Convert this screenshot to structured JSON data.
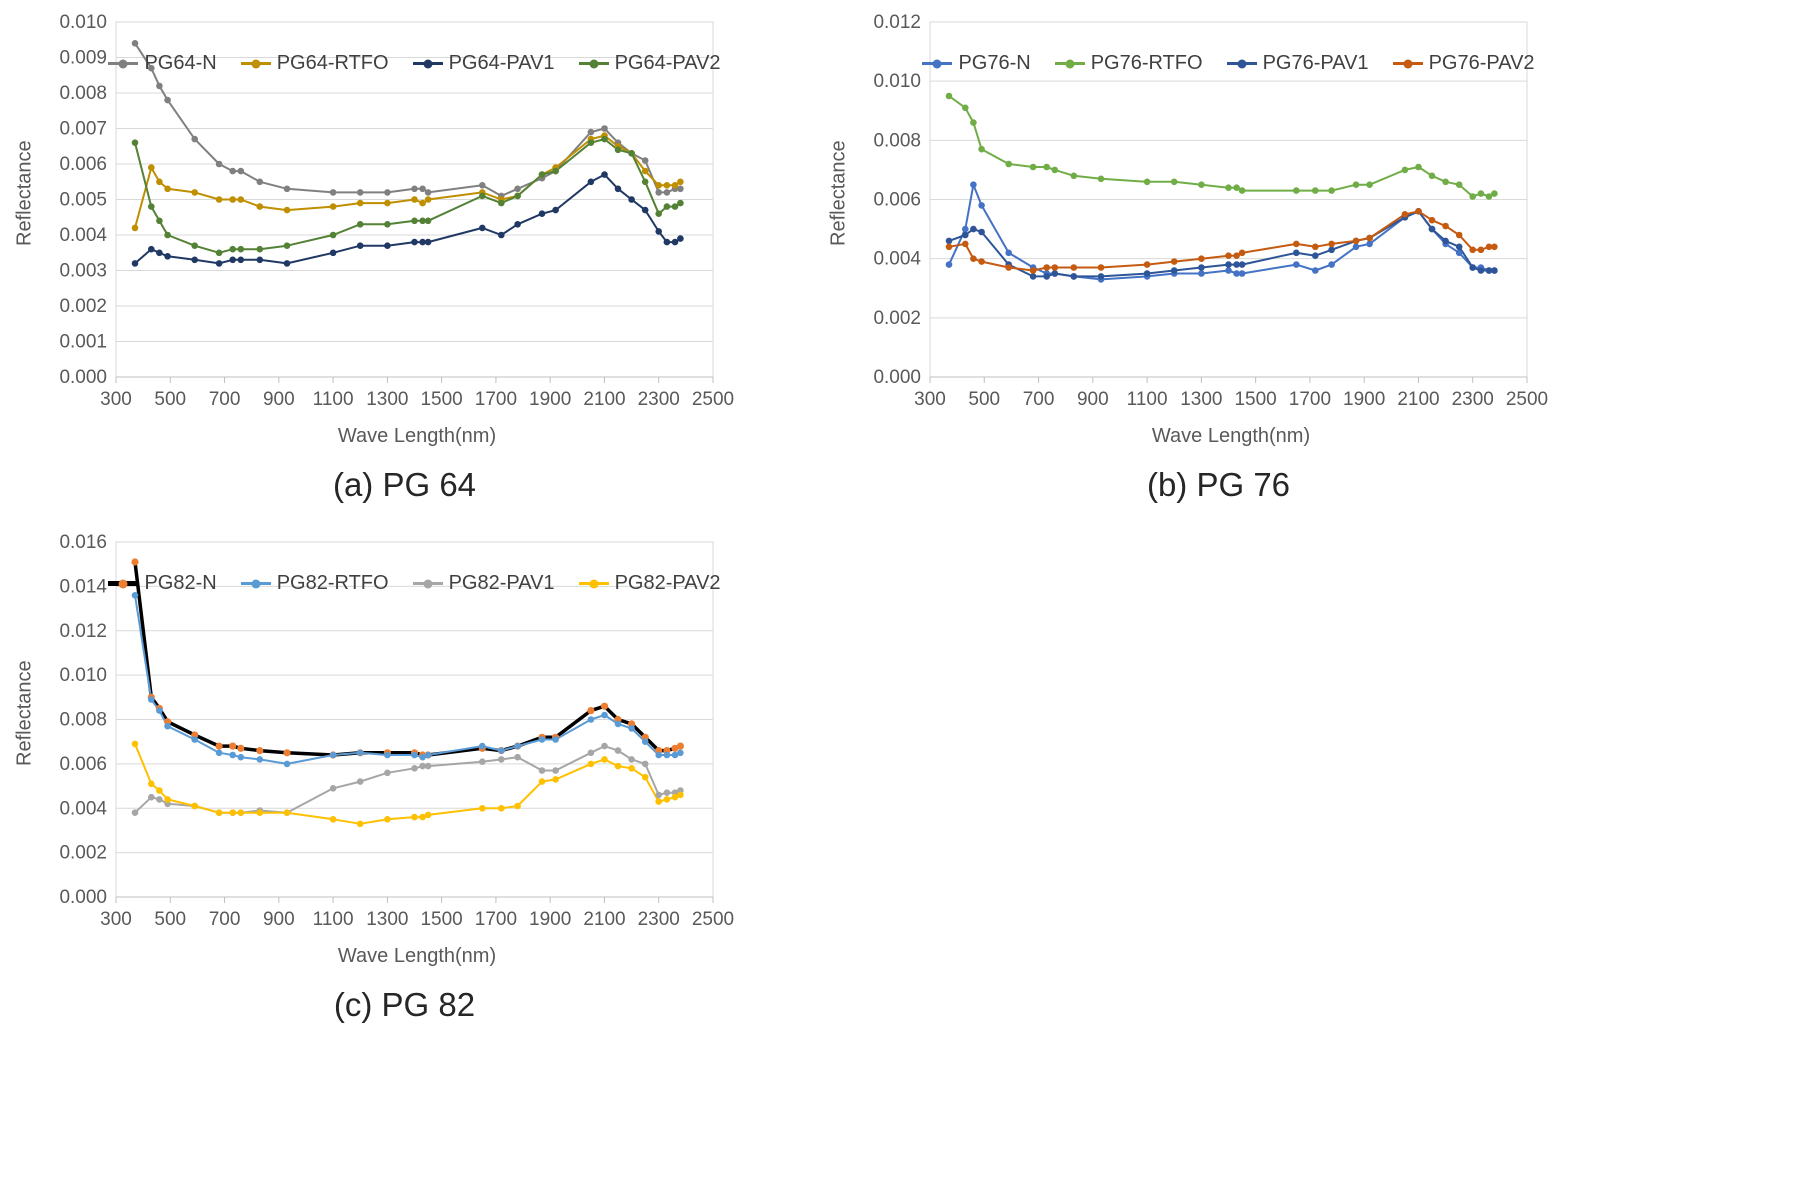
{
  "figure": {
    "background": "#FFFFFF",
    "grid_color": "#D9D9D9",
    "axis_color": "#BFBFBF",
    "tick_text_color": "#595959"
  },
  "chart_data": [
    {
      "id": "pg64",
      "type": "line",
      "caption": "(a) PG 64",
      "xlabel": "Wave Length(nm)",
      "ylabel": "Reflectance",
      "xlim": [
        300,
        2500
      ],
      "xticks": [
        300,
        500,
        700,
        900,
        1100,
        1300,
        1500,
        1700,
        1900,
        2100,
        2300,
        2500
      ],
      "ylim": [
        0,
        0.01
      ],
      "ytick_step": 0.001,
      "ytick_decimals": 3,
      "grid": true,
      "legend_position": "top-center-inside",
      "x": [
        370,
        430,
        460,
        490,
        590,
        680,
        730,
        760,
        830,
        930,
        1100,
        1200,
        1300,
        1400,
        1430,
        1450,
        1650,
        1720,
        1780,
        1870,
        1920,
        2050,
        2100,
        2150,
        2200,
        2250,
        2300,
        2330,
        2360,
        2380
      ],
      "series": [
        {
          "name": "PG64-N",
          "color": "#808080",
          "values": [
            0.0094,
            0.0087,
            0.0082,
            0.0078,
            0.0067,
            0.006,
            0.0058,
            0.0058,
            0.0055,
            0.0053,
            0.0052,
            0.0052,
            0.0052,
            0.0053,
            0.0053,
            0.0052,
            0.0054,
            0.0051,
            0.0053,
            0.0056,
            0.0058,
            0.0069,
            0.007,
            0.0066,
            0.0063,
            0.0061,
            0.0052,
            0.0052,
            0.0053,
            0.0053
          ]
        },
        {
          "name": "PG64-RTFO",
          "color": "#BF8F00",
          "values": [
            0.0042,
            0.0059,
            0.0055,
            0.0053,
            0.0052,
            0.005,
            0.005,
            0.005,
            0.0048,
            0.0047,
            0.0048,
            0.0049,
            0.0049,
            0.005,
            0.0049,
            0.005,
            0.0052,
            0.005,
            0.0051,
            0.0057,
            0.0059,
            0.0067,
            0.0068,
            0.0065,
            0.0063,
            0.0058,
            0.0054,
            0.0054,
            0.0054,
            0.0055
          ]
        },
        {
          "name": "PG64-PAV1",
          "color": "#203864",
          "values": [
            0.0032,
            0.0036,
            0.0035,
            0.0034,
            0.0033,
            0.0032,
            0.0033,
            0.0033,
            0.0033,
            0.0032,
            0.0035,
            0.0037,
            0.0037,
            0.0038,
            0.0038,
            0.0038,
            0.0042,
            0.004,
            0.0043,
            0.0046,
            0.0047,
            0.0055,
            0.0057,
            0.0053,
            0.005,
            0.0047,
            0.0041,
            0.0038,
            0.0038,
            0.0039
          ]
        },
        {
          "name": "PG64-PAV2",
          "color": "#538135",
          "values": [
            0.0066,
            0.0048,
            0.0044,
            0.004,
            0.0037,
            0.0035,
            0.0036,
            0.0036,
            0.0036,
            0.0037,
            0.004,
            0.0043,
            0.0043,
            0.0044,
            0.0044,
            0.0044,
            0.0051,
            0.0049,
            0.0051,
            0.0057,
            0.0058,
            0.0066,
            0.0067,
            0.0064,
            0.0063,
            0.0055,
            0.0046,
            0.0048,
            0.0048,
            0.0049
          ]
        }
      ]
    },
    {
      "id": "pg76",
      "type": "line",
      "caption": "(b) PG 76",
      "xlabel": "Wave Length(nm)",
      "ylabel": "Reflectance",
      "xlim": [
        300,
        2500
      ],
      "xticks": [
        300,
        500,
        700,
        900,
        1100,
        1300,
        1500,
        1700,
        1900,
        2100,
        2300,
        2500
      ],
      "ylim": [
        0,
        0.012
      ],
      "ytick_step": 0.002,
      "ytick_decimals": 3,
      "grid": true,
      "legend_position": "top-center-inside",
      "x": [
        370,
        430,
        460,
        490,
        590,
        680,
        730,
        760,
        830,
        930,
        1100,
        1200,
        1300,
        1400,
        1430,
        1450,
        1650,
        1720,
        1780,
        1870,
        1920,
        2050,
        2100,
        2150,
        2200,
        2250,
        2300,
        2330,
        2360,
        2380
      ],
      "series": [
        {
          "name": "PG76-N",
          "color": "#4472C4",
          "values": [
            0.0038,
            0.005,
            0.0065,
            0.0058,
            0.0042,
            0.0037,
            0.0035,
            0.0035,
            0.0034,
            0.0033,
            0.0034,
            0.0035,
            0.0035,
            0.0036,
            0.0035,
            0.0035,
            0.0038,
            0.0036,
            0.0038,
            0.0044,
            0.0045,
            0.0054,
            0.0056,
            0.005,
            0.0045,
            0.0042,
            0.0037,
            0.0037,
            0.0036,
            0.0036
          ]
        },
        {
          "name": "PG76-RTFO",
          "color": "#70AD47",
          "values": [
            0.0095,
            0.0091,
            0.0086,
            0.0077,
            0.0072,
            0.0071,
            0.0071,
            0.007,
            0.0068,
            0.0067,
            0.0066,
            0.0066,
            0.0065,
            0.0064,
            0.0064,
            0.0063,
            0.0063,
            0.0063,
            0.0063,
            0.0065,
            0.0065,
            0.007,
            0.0071,
            0.0068,
            0.0066,
            0.0065,
            0.0061,
            0.0062,
            0.0061,
            0.0062
          ]
        },
        {
          "name": "PG76-PAV1",
          "color": "#2E5597",
          "values": [
            0.0046,
            0.0048,
            0.005,
            0.0049,
            0.0038,
            0.0034,
            0.0034,
            0.0035,
            0.0034,
            0.0034,
            0.0035,
            0.0036,
            0.0037,
            0.0038,
            0.0038,
            0.0038,
            0.0042,
            0.0041,
            0.0043,
            0.0046,
            0.0047,
            0.0054,
            0.0056,
            0.005,
            0.0046,
            0.0044,
            0.0037,
            0.0036,
            0.0036,
            0.0036
          ]
        },
        {
          "name": "PG76-PAV2",
          "color": "#C55A11",
          "values": [
            0.0044,
            0.0045,
            0.004,
            0.0039,
            0.0037,
            0.0036,
            0.0037,
            0.0037,
            0.0037,
            0.0037,
            0.0038,
            0.0039,
            0.004,
            0.0041,
            0.0041,
            0.0042,
            0.0045,
            0.0044,
            0.0045,
            0.0046,
            0.0047,
            0.0055,
            0.0056,
            0.0053,
            0.0051,
            0.0048,
            0.0043,
            0.0043,
            0.0044,
            0.0044
          ]
        }
      ]
    },
    {
      "id": "pg82",
      "type": "line",
      "caption": "(c) PG 82",
      "xlabel": "Wave Length(nm)",
      "ylabel": "Reflectance",
      "xlim": [
        300,
        2500
      ],
      "xticks": [
        300,
        500,
        700,
        900,
        1100,
        1300,
        1500,
        1700,
        1900,
        2100,
        2300,
        2500
      ],
      "ylim": [
        0,
        0.016
      ],
      "ytick_step": 0.002,
      "ytick_decimals": 3,
      "grid": true,
      "legend_position": "top-center-inside",
      "x": [
        370,
        430,
        460,
        490,
        590,
        680,
        730,
        760,
        830,
        930,
        1100,
        1200,
        1300,
        1400,
        1430,
        1450,
        1650,
        1720,
        1780,
        1870,
        1920,
        2050,
        2100,
        2150,
        2200,
        2250,
        2300,
        2330,
        2360,
        2380
      ],
      "series": [
        {
          "name": "PG82-N",
          "color": "#000000",
          "marker_color": "#ED7D31",
          "line_width": 3.5,
          "marker_size": 3.6,
          "values": [
            0.0151,
            0.009,
            0.0085,
            0.0079,
            0.0073,
            0.0068,
            0.0068,
            0.0067,
            0.0066,
            0.0065,
            0.0064,
            0.0065,
            0.0065,
            0.0065,
            0.0064,
            0.0064,
            0.0067,
            0.0066,
            0.0068,
            0.0072,
            0.0072,
            0.0084,
            0.0086,
            0.008,
            0.0078,
            0.0072,
            0.0066,
            0.0066,
            0.0067,
            0.0068
          ]
        },
        {
          "name": "PG82-RTFO",
          "color": "#5B9BD5",
          "values": [
            0.0136,
            0.0089,
            0.0084,
            0.0077,
            0.0071,
            0.0065,
            0.0064,
            0.0063,
            0.0062,
            0.006,
            0.0064,
            0.0065,
            0.0064,
            0.0064,
            0.0063,
            0.0064,
            0.0068,
            0.0066,
            0.0068,
            0.0071,
            0.0071,
            0.008,
            0.0082,
            0.0078,
            0.0076,
            0.007,
            0.0064,
            0.0064,
            0.0064,
            0.0065
          ]
        },
        {
          "name": "PG82-PAV1",
          "color": "#A6A6A6",
          "values": [
            0.0038,
            0.0045,
            0.0044,
            0.0042,
            0.0041,
            0.0038,
            0.0038,
            0.0038,
            0.0039,
            0.0038,
            0.0049,
            0.0052,
            0.0056,
            0.0058,
            0.0059,
            0.0059,
            0.0061,
            0.0062,
            0.0063,
            0.0057,
            0.0057,
            0.0065,
            0.0068,
            0.0066,
            0.0062,
            0.006,
            0.0046,
            0.0047,
            0.0047,
            0.0048
          ]
        },
        {
          "name": "PG82-PAV2",
          "color": "#FFC000",
          "values": [
            0.0069,
            0.0051,
            0.0048,
            0.0044,
            0.0041,
            0.0038,
            0.0038,
            0.0038,
            0.0038,
            0.0038,
            0.0035,
            0.0033,
            0.0035,
            0.0036,
            0.0036,
            0.0037,
            0.004,
            0.004,
            0.0041,
            0.0052,
            0.0053,
            0.006,
            0.0062,
            0.0059,
            0.0058,
            0.0054,
            0.0043,
            0.0044,
            0.0045,
            0.0046
          ]
        }
      ]
    }
  ]
}
